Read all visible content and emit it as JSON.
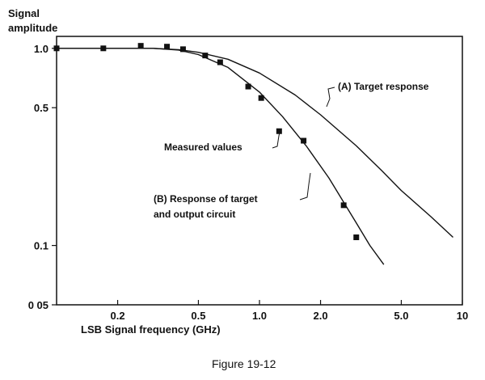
{
  "chart_data": {
    "type": "line",
    "title": "",
    "ylabel_lines": [
      "Signal",
      "amplitude"
    ],
    "xlabel": "LSB Signal frequency (GHz)",
    "xscale": "log",
    "yscale": "log",
    "xlim": [
      0.1,
      10
    ],
    "ylim": [
      0.05,
      1.15
    ],
    "grid": false,
    "x_ticks": [
      {
        "value": 0.2,
        "label": "0.2"
      },
      {
        "value": 0.5,
        "label": "0.5"
      },
      {
        "value": 1.0,
        "label": "1.0"
      },
      {
        "value": 2.0,
        "label": "2.0"
      },
      {
        "value": 5.0,
        "label": "5.0"
      },
      {
        "value": 10,
        "label": "10"
      }
    ],
    "y_ticks": [
      {
        "value": 1.0,
        "label": "1.0"
      },
      {
        "value": 0.5,
        "label": "0.5"
      },
      {
        "value": 0.1,
        "label": "0.1"
      },
      {
        "value": 0.05,
        "label": "0 05"
      }
    ],
    "series": [
      {
        "name": "(A) Target response",
        "kind": "line",
        "points": [
          [
            0.1,
            1.0
          ],
          [
            0.3,
            1.0
          ],
          [
            0.4,
            0.985
          ],
          [
            0.5,
            0.955
          ],
          [
            0.7,
            0.88
          ],
          [
            1.0,
            0.75
          ],
          [
            1.5,
            0.58
          ],
          [
            2.0,
            0.46
          ],
          [
            3.0,
            0.32
          ],
          [
            4.0,
            0.24
          ],
          [
            5.0,
            0.19
          ],
          [
            7.0,
            0.14
          ],
          [
            9.0,
            0.11
          ]
        ]
      },
      {
        "name": "(B) Response of target and output circuit",
        "kind": "line",
        "points": [
          [
            0.1,
            1.0
          ],
          [
            0.3,
            1.0
          ],
          [
            0.4,
            0.98
          ],
          [
            0.5,
            0.93
          ],
          [
            0.7,
            0.8
          ],
          [
            1.0,
            0.6
          ],
          [
            1.3,
            0.45
          ],
          [
            1.7,
            0.32
          ],
          [
            2.2,
            0.22
          ],
          [
            3.0,
            0.13
          ],
          [
            3.5,
            0.1
          ],
          [
            4.1,
            0.08
          ]
        ]
      },
      {
        "name": "Measured values",
        "kind": "scatter",
        "points": [
          [
            0.1,
            1.0
          ],
          [
            0.17,
            1.0
          ],
          [
            0.26,
            1.03
          ],
          [
            0.35,
            1.02
          ],
          [
            0.42,
            0.99
          ],
          [
            0.54,
            0.92
          ],
          [
            0.64,
            0.85
          ],
          [
            0.88,
            0.64
          ],
          [
            1.02,
            0.56
          ],
          [
            1.25,
            0.38
          ],
          [
            1.65,
            0.34
          ],
          [
            2.6,
            0.16
          ],
          [
            3.0,
            0.11
          ]
        ]
      }
    ],
    "annotations": [
      {
        "text": "(A) Target response"
      },
      {
        "text": "Measured values"
      },
      {
        "text": "(B) Response of target"
      },
      {
        "text": "and output circuit"
      }
    ]
  },
  "caption": "Figure 19-12"
}
